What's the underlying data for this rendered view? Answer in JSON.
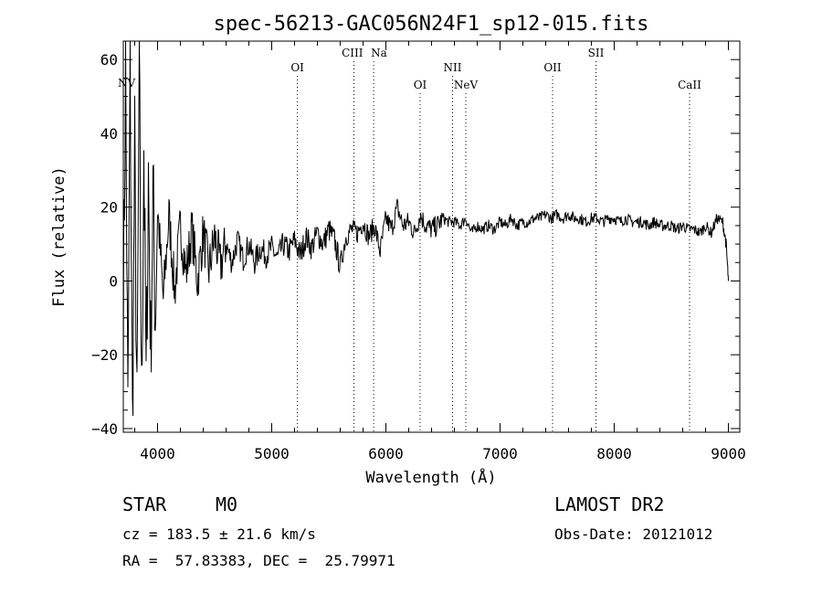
{
  "chart_data": {
    "type": "line",
    "title": "spec-56213-GAC056N24F1_sp12-015.fits",
    "xlabel": "Wavelength (Å)",
    "ylabel": "Flux (relative)",
    "xlim": [
      3700,
      9100
    ],
    "ylim": [
      -41,
      65
    ],
    "xticks": [
      4000,
      5000,
      6000,
      7000,
      8000,
      9000
    ],
    "yticks": [
      -40,
      -20,
      0,
      20,
      40,
      60
    ],
    "ytick_labels": [
      "−40",
      "−20",
      "0",
      "20",
      "40",
      "60"
    ],
    "series": [
      {
        "name": "spectrum",
        "x": [
          3700,
          3720,
          3740,
          3760,
          3780,
          3800,
          3820,
          3840,
          3860,
          3880,
          3900,
          3920,
          3940,
          3960,
          3980,
          4000,
          4050,
          4100,
          4150,
          4200,
          4250,
          4300,
          4350,
          4400,
          4450,
          4500,
          4550,
          4600,
          4650,
          4700,
          4750,
          4800,
          4850,
          4900,
          4950,
          5000,
          5050,
          5100,
          5150,
          5200,
          5250,
          5300,
          5350,
          5400,
          5450,
          5500,
          5550,
          5600,
          5650,
          5700,
          5750,
          5800,
          5850,
          5900,
          5950,
          6000,
          6050,
          6100,
          6150,
          6200,
          6250,
          6300,
          6350,
          6400,
          6450,
          6500,
          6550,
          6600,
          6650,
          6700,
          6750,
          6800,
          6850,
          6900,
          6950,
          7000,
          7050,
          7100,
          7150,
          7200,
          7250,
          7300,
          7350,
          7400,
          7450,
          7500,
          7550,
          7600,
          7650,
          7700,
          7750,
          7800,
          7850,
          7900,
          7950,
          8000,
          8050,
          8100,
          8150,
          8200,
          8250,
          8300,
          8350,
          8400,
          8450,
          8500,
          8550,
          8600,
          8650,
          8700,
          8750,
          8800,
          8850,
          8900,
          8950,
          8980,
          9000
        ],
        "y": [
          -10,
          58,
          -38,
          60,
          -39,
          35,
          -40,
          63,
          -35,
          38,
          -30,
          30,
          -20,
          25,
          -10,
          20,
          -5,
          18,
          -3,
          15,
          2,
          14,
          0,
          13,
          3,
          12,
          4,
          10,
          5,
          11,
          6,
          10,
          5,
          9,
          7,
          9,
          6,
          10,
          8,
          11,
          7,
          12,
          9,
          13,
          10,
          14,
          11,
          4,
          12,
          14,
          13,
          16,
          12,
          15,
          8,
          17,
          14,
          20,
          15,
          16,
          13,
          18,
          15,
          14,
          15,
          17,
          16,
          16,
          15,
          17,
          13,
          15,
          14,
          15,
          14,
          16,
          15,
          17,
          15,
          16,
          16,
          17,
          17,
          18,
          17,
          18,
          17,
          18,
          17,
          17,
          16,
          17,
          17,
          16,
          17,
          17,
          16,
          17,
          16,
          16,
          16,
          15,
          16,
          15,
          15,
          15,
          14,
          15,
          14,
          14,
          13,
          15,
          13,
          17,
          16,
          10,
          0
        ]
      }
    ],
    "lines": [
      {
        "label": "NV",
        "wavelength": 3700
      },
      {
        "label": "OI",
        "wavelength": 5225
      },
      {
        "label": "CIII",
        "wavelength": 5720
      },
      {
        "label": "Na",
        "wavelength": 5893
      },
      {
        "label": "OI",
        "wavelength": 6300
      },
      {
        "label": "NII",
        "wavelength": 6584
      },
      {
        "label": "NeV",
        "wavelength": 6700
      },
      {
        "label": "OII",
        "wavelength": 7460
      },
      {
        "label": "SII",
        "wavelength": 7840
      },
      {
        "label": "CaII",
        "wavelength": 8660
      }
    ]
  },
  "footer": {
    "object_class": "STAR",
    "subclass": "M0",
    "survey": "LAMOST DR2",
    "redshift": "cz = 183.5 ± 21.6 km/s",
    "obs_date": "Obs-Date: 20121012",
    "coords": "RA =  57.83383, DEC =  25.79971"
  }
}
